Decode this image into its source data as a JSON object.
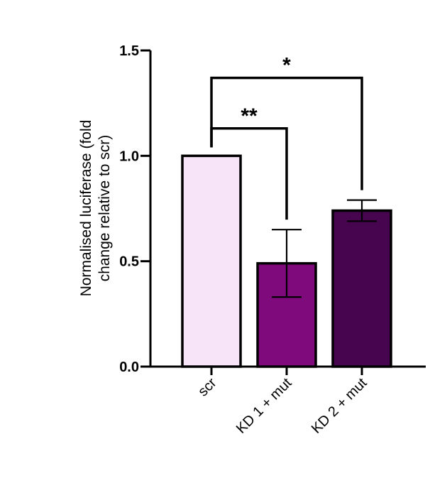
{
  "chart_data": {
    "type": "bar",
    "categories": [
      "scr",
      "KD 1 + mut",
      "KD 2 + mut"
    ],
    "values": [
      1.0,
      0.49,
      0.74
    ],
    "error": [
      0.0,
      0.16,
      0.05
    ],
    "colors": [
      "#f8e4f8",
      "#7f0a7c",
      "#46054e"
    ],
    "ylabel_lines": [
      "Normalised luciferase (fold",
      "change relative to scr)"
    ],
    "xlabel": "",
    "ylim": [
      0.0,
      1.5
    ],
    "yticks": [
      0.0,
      0.5,
      1.0,
      1.5
    ],
    "ytick_labels": [
      "0.0",
      "0.5",
      "1.0",
      "1.5"
    ],
    "grid": false,
    "significance": [
      {
        "from": 0,
        "to": 1,
        "label": "**",
        "y": 1.13
      },
      {
        "from": 0,
        "to": 2,
        "label": "*",
        "y": 1.37
      }
    ]
  }
}
